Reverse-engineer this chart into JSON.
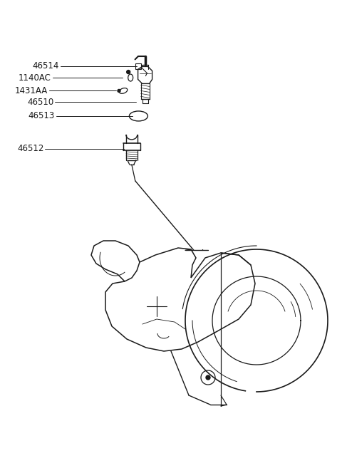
{
  "bg_color": "#ffffff",
  "line_color": "#1a1a1a",
  "text_color": "#1a1a1a",
  "part_labels": [
    {
      "number": "46514",
      "xt": 0.17,
      "yt": 0.875,
      "xl": 0.395,
      "yl": 0.875
    },
    {
      "number": "1140AC",
      "xt": 0.15,
      "yt": 0.845,
      "xl": 0.355,
      "yl": 0.848
    },
    {
      "number": "1431AA",
      "xt": 0.143,
      "yt": 0.81,
      "xl": 0.345,
      "yl": 0.813
    },
    {
      "number": "46510",
      "xt": 0.16,
      "yt": 0.778,
      "xl": 0.395,
      "yl": 0.778
    },
    {
      "number": "46513",
      "xt": 0.163,
      "yt": 0.74,
      "xl": 0.39,
      "yl": 0.74
    },
    {
      "number": "46512",
      "xt": 0.13,
      "yt": 0.665,
      "xl": 0.37,
      "yl": 0.662
    }
  ],
  "font_size": 8.5,
  "figsize": [
    4.8,
    6.57
  ],
  "dpi": 100
}
